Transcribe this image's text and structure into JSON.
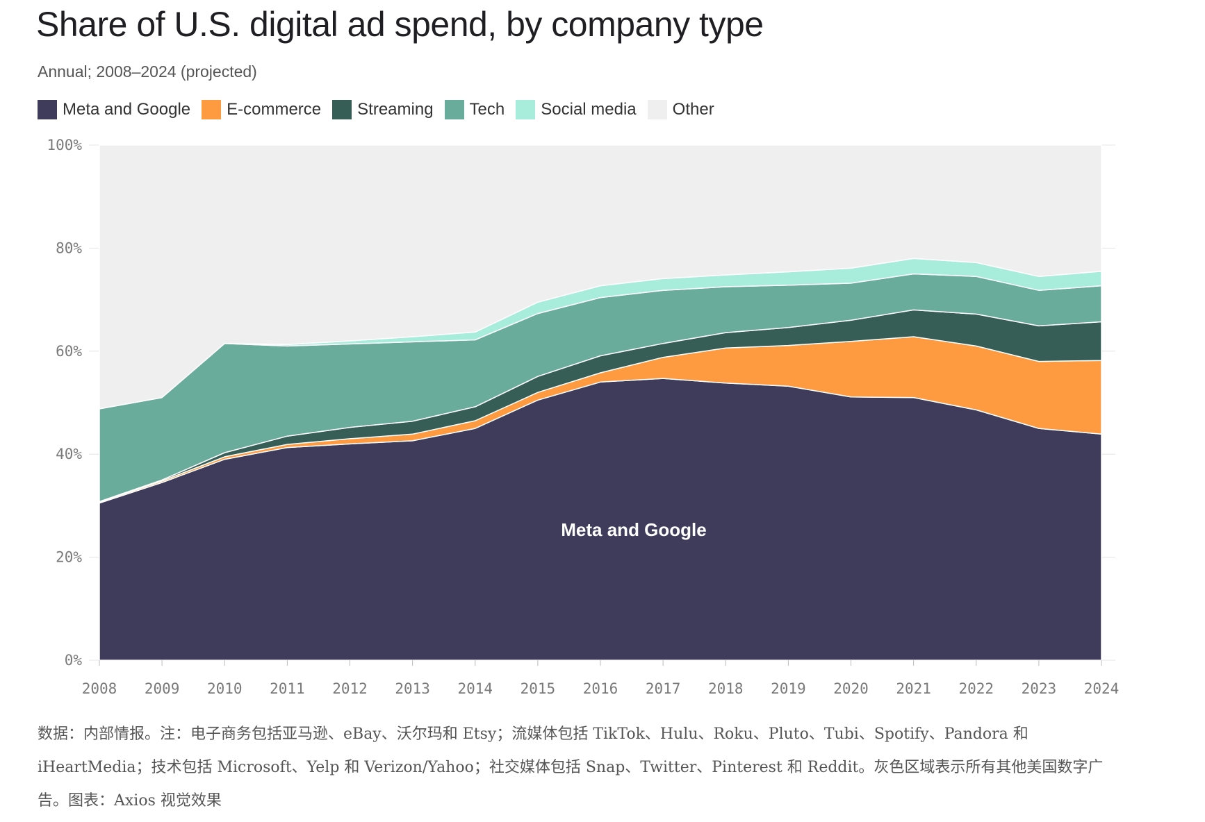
{
  "title": "Share of U.S. digital ad spend, by company type",
  "subtitle": "Annual; 2008–2024 (projected)",
  "note": "数据：内部情报。注：电子商务包括亚马逊、eBay、沃尔玛和 Etsy；流媒体包括 TikTok、Hulu、Roku、Pluto、Tubi、Spotify、Pandora 和 iHeartMedia；技术包括 Microsoft、Yelp 和 Verizon/Yahoo；社交媒体包括 Snap、Twitter、Pinterest 和 Reddit。灰色区域表示所有其他美国数字广告。图表：Axios 视觉效果",
  "chart_data": {
    "type": "area",
    "stacked": true,
    "x": [
      "2008",
      "2009",
      "2010",
      "2011",
      "2012",
      "2013",
      "2014",
      "2015",
      "2016",
      "2017",
      "2018",
      "2019",
      "2020",
      "2021",
      "2022",
      "2023",
      "2024"
    ],
    "ylim": [
      0,
      100
    ],
    "yticks": [
      "0%",
      "20%",
      "40%",
      "60%",
      "80%",
      "100%"
    ],
    "yunit": "%",
    "legend_position": "top-left",
    "annotation": "Meta and Google",
    "series": [
      {
        "name": "Meta and Google",
        "color": "#3f3b5b",
        "values": [
          30.5,
          34.5,
          39.0,
          41.3,
          42.0,
          42.6,
          45.0,
          50.5,
          54.0,
          54.7,
          53.8,
          53.2,
          51.1,
          51.0,
          48.6,
          45.0,
          43.9
        ]
      },
      {
        "name": "E-commerce",
        "color": "#fe9a40",
        "values": [
          0.2,
          0.3,
          0.5,
          0.6,
          1.0,
          1.3,
          1.5,
          1.5,
          1.8,
          4.1,
          6.8,
          7.9,
          10.8,
          11.8,
          12.4,
          13.0,
          14.3
        ]
      },
      {
        "name": "Streaming",
        "color": "#365e56",
        "values": [
          0.1,
          0.2,
          0.8,
          1.6,
          2.2,
          2.5,
          2.7,
          3.1,
          3.3,
          2.7,
          3.0,
          3.5,
          4.1,
          5.2,
          6.2,
          6.9,
          7.5
        ]
      },
      {
        "name": "Tech",
        "color": "#6aac9b",
        "values": [
          18.0,
          16.0,
          21.2,
          17.5,
          16.2,
          15.4,
          13.0,
          12.2,
          11.3,
          10.3,
          8.9,
          8.2,
          7.2,
          7.0,
          7.3,
          6.9,
          7.0
        ]
      },
      {
        "name": "Social media",
        "color": "#a8ecdb",
        "values": [
          0.0,
          0.0,
          0.0,
          0.3,
          0.6,
          1.0,
          1.5,
          2.2,
          2.3,
          2.3,
          2.3,
          2.6,
          2.9,
          3.0,
          2.7,
          2.7,
          2.8
        ]
      },
      {
        "name": "Other",
        "color": "#efefef",
        "values": [
          51.2,
          49.0,
          38.5,
          38.7,
          38.0,
          37.2,
          36.3,
          30.5,
          27.3,
          25.9,
          25.2,
          24.6,
          23.9,
          22.0,
          22.8,
          25.5,
          24.5
        ]
      }
    ]
  }
}
